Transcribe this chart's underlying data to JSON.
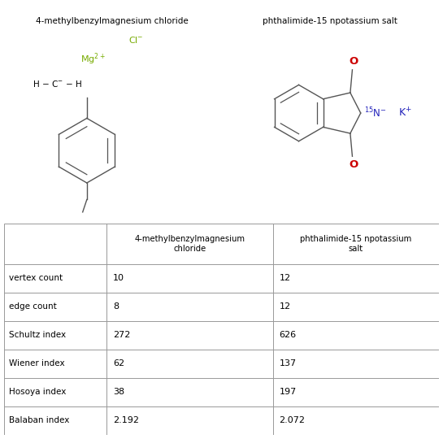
{
  "title_left": "4-methylbenzylmagnesium chloride",
  "title_right": "phthalimide-15 npotassium salt",
  "col_headers": [
    "4-methylbenzylmagnesium\nchloride",
    "phthalimide-15 npotassium\nsalt"
  ],
  "row_labels": [
    "vertex count",
    "edge count",
    "Schultz index",
    "Wiener index",
    "Hosoya index",
    "Balaban index"
  ],
  "col1_values": [
    "10",
    "8",
    "272",
    "62",
    "38",
    "2.192"
  ],
  "col2_values": [
    "12",
    "12",
    "626",
    "137",
    "197",
    "2.072"
  ],
  "bg_color": "#ffffff",
  "text_color": "#000000",
  "border_color": "#999999",
  "mg_color": "#77ab00",
  "cl_color": "#77ab00",
  "n_color": "#2222bb",
  "k_color": "#2222bb",
  "o_color": "#cc0000"
}
